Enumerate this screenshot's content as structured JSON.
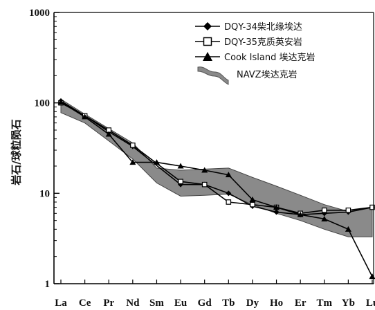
{
  "chart_data": {
    "type": "line",
    "ylabel": "岩石/球粒陨石",
    "yscale": "log",
    "ylim": [
      1,
      1000
    ],
    "yticks": [
      "1",
      "10",
      "100",
      "1000"
    ],
    "categories": [
      "La",
      "Ce",
      "Pr",
      "Nd",
      "Sm",
      "Eu",
      "Gd",
      "Tb",
      "Dy",
      "Ho",
      "Er",
      "Tm",
      "Yb",
      "Lu"
    ],
    "series": [
      {
        "name": "DQY-34柴北缘埃达",
        "marker": "diamond-filled",
        "points": [
          {
            "cat": "La",
            "v": 105
          },
          {
            "cat": "Ce",
            "v": 72
          },
          {
            "cat": "Pr",
            "v": 48
          },
          {
            "cat": "Nd",
            "v": 33
          },
          {
            "cat": "Eu",
            "v": 12.5
          },
          {
            "cat": "Gd",
            "v": 12.5
          },
          {
            "cat": "Tb",
            "v": 10
          },
          {
            "cat": "Dy",
            "v": 7.2
          },
          {
            "cat": "Ho",
            "v": 6.2
          },
          {
            "cat": "Er",
            "v": 5.8
          },
          {
            "cat": "Tm",
            "v": 6.0
          },
          {
            "cat": "Yb",
            "v": 6.2
          },
          {
            "cat": "Lu",
            "v": 7.0
          }
        ]
      },
      {
        "name": "DQY-35克质英安岩",
        "marker": "square-open",
        "points": [
          {
            "cat": "La",
            "v": 100
          },
          {
            "cat": "Ce",
            "v": 72
          },
          {
            "cat": "Pr",
            "v": 50
          },
          {
            "cat": "Nd",
            "v": 34
          },
          {
            "cat": "Eu",
            "v": 13.5
          },
          {
            "cat": "Gd",
            "v": 12.5
          },
          {
            "cat": "Tb",
            "v": 8
          },
          {
            "cat": "Dy",
            "v": 7.5
          },
          {
            "cat": "Ho",
            "v": 7.0
          },
          {
            "cat": "Er",
            "v": 6.0
          },
          {
            "cat": "Tm",
            "v": 6.5
          },
          {
            "cat": "Yb",
            "v": 6.5
          },
          {
            "cat": "Lu",
            "v": 7.0
          }
        ]
      },
      {
        "name": "Cook Island 埃达克岩",
        "marker": "triangle-filled",
        "points": [
          {
            "cat": "La",
            "v": 102
          },
          {
            "cat": "Ce",
            "v": 70
          },
          {
            "cat": "Pr",
            "v": 45
          },
          {
            "cat": "Nd",
            "v": 22
          },
          {
            "cat": "Sm",
            "v": 22
          },
          {
            "cat": "Eu",
            "v": 20
          },
          {
            "cat": "Gd",
            "v": 18
          },
          {
            "cat": "Tb",
            "v": 16
          },
          {
            "cat": "Dy",
            "v": 8.5
          },
          {
            "cat": "Ho",
            "v": 7.0
          },
          {
            "cat": "Er",
            "v": 5.8
          },
          {
            "cat": "Tm",
            "v": 5.2
          },
          {
            "cat": "Yb",
            "v": 4.0
          },
          {
            "cat": "Lu",
            "v": 1.2
          }
        ]
      }
    ],
    "band": {
      "name": "NAVZ埃达克岩",
      "fill": "#8a8a8a",
      "upper": [
        {
          "cat": "La",
          "v": 110
        },
        {
          "cat": "Ce",
          "v": 75
        },
        {
          "cat": "Pr",
          "v": 52
        },
        {
          "cat": "Nd",
          "v": 36
        },
        {
          "cat": "Sm",
          "v": 19
        },
        {
          "cat": "Eu",
          "v": 18
        },
        {
          "cat": "Gd",
          "v": 18.5
        },
        {
          "cat": "Tb",
          "v": 19
        },
        {
          "cat": "Dy",
          "v": 15
        },
        {
          "cat": "Ho",
          "v": 12
        },
        {
          "cat": "Er",
          "v": 9.5
        },
        {
          "cat": "Tm",
          "v": 7.5
        },
        {
          "cat": "Yb",
          "v": 6.3
        },
        {
          "cat": "Lu",
          "v": 7.0
        }
      ],
      "lower": [
        {
          "cat": "La",
          "v": 78
        },
        {
          "cat": "Ce",
          "v": 60
        },
        {
          "cat": "Pr",
          "v": 38
        },
        {
          "cat": "Nd",
          "v": 24
        },
        {
          "cat": "Sm",
          "v": 13
        },
        {
          "cat": "Eu",
          "v": 9.3
        },
        {
          "cat": "Gd",
          "v": 9.5
        },
        {
          "cat": "Tb",
          "v": 9.8
        },
        {
          "cat": "Dy",
          "v": 7.5
        },
        {
          "cat": "Ho",
          "v": 6.0
        },
        {
          "cat": "Er",
          "v": 5.0
        },
        {
          "cat": "Tm",
          "v": 4.0
        },
        {
          "cat": "Yb",
          "v": 3.3
        },
        {
          "cat": "Lu",
          "v": 3.3
        }
      ]
    },
    "legend_position": "top-right",
    "grid": false
  }
}
